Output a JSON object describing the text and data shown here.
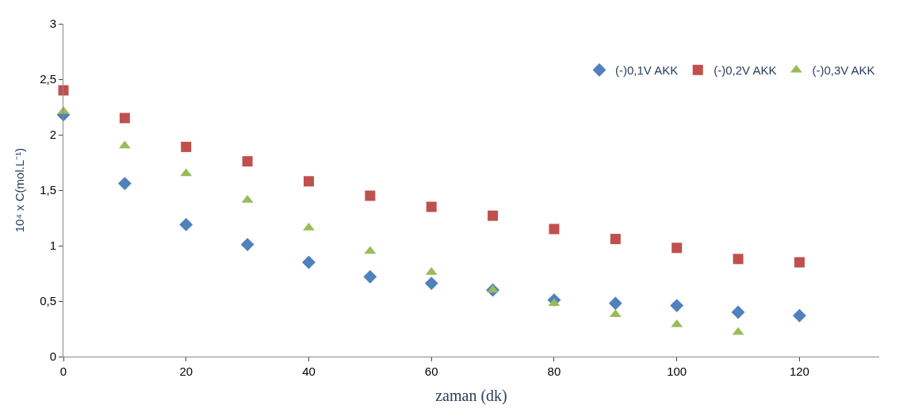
{
  "chart_data": {
    "type": "scatter",
    "xlabel": "zaman (dk)",
    "ylabel": "10⁴ x C(mol.L⁻¹)",
    "x": [
      0,
      10,
      20,
      30,
      40,
      50,
      60,
      70,
      80,
      90,
      100,
      110,
      120
    ],
    "series": [
      {
        "name": "(-)0,1V AKK",
        "color": "#4f81bd",
        "marker": "diamond",
        "values": [
          2.18,
          1.56,
          1.19,
          1.01,
          0.85,
          0.72,
          0.66,
          0.6,
          0.51,
          0.48,
          0.46,
          0.4,
          0.37
        ]
      },
      {
        "name": "(-)0,2V AKK",
        "color": "#c0504d",
        "marker": "square",
        "values": [
          2.4,
          2.15,
          1.89,
          1.76,
          1.58,
          1.45,
          1.35,
          1.27,
          1.15,
          1.06,
          0.98,
          0.88,
          0.85
        ]
      },
      {
        "name": "(-)0,3V AKK",
        "color": "#9bbb59",
        "marker": "triangle",
        "values": [
          2.21,
          1.9,
          1.65,
          1.41,
          1.16,
          0.95,
          0.76,
          0.6,
          0.48,
          0.38,
          0.29,
          0.22,
          null
        ]
      }
    ],
    "xlim": [
      0,
      133
    ],
    "xticks": [
      0,
      20,
      40,
      60,
      80,
      100,
      120
    ],
    "ylim": [
      0,
      3
    ],
    "yticks": [
      0,
      {
        "value": 0.5,
        "label": "0,5"
      },
      1,
      {
        "value": 1.5,
        "label": "1,5"
      },
      2,
      {
        "value": 2.5,
        "label": "2,5"
      },
      3
    ],
    "legend": "top right"
  }
}
